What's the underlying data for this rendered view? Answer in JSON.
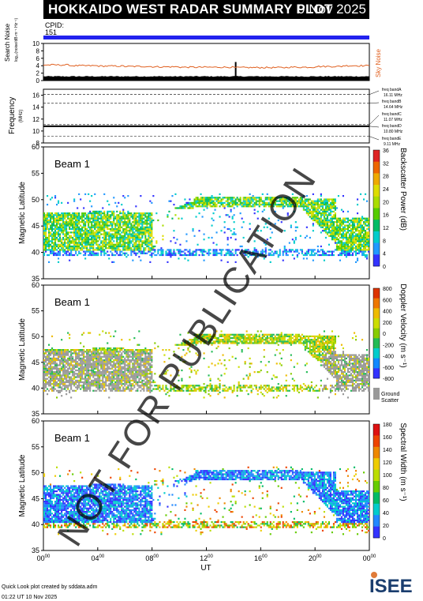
{
  "header": {
    "title": "HOKKAIDO WEST RADAR SUMMARY PLOT",
    "date": "9 Nov 2025"
  },
  "cpid": {
    "label": "CPID:",
    "value": "151"
  },
  "colors": {
    "cpid_bar": "#2222ee",
    "sky_noise": "#e06020",
    "search_noise": "#000000",
    "ground_scatter": "#999999",
    "watermark": "#000000"
  },
  "noise_panel": {
    "ylabel": "Search Noise",
    "ylabel_sub": "log₁₀(noise/dB·m⁻¹ Hz⁻¹)",
    "right_label": "Sky Noise",
    "yticks": [
      "10",
      "8",
      "6",
      "4",
      "2",
      "0"
    ],
    "ylim": [
      0,
      10
    ]
  },
  "freq_panel": {
    "ylabel": "Frequency",
    "ylabel_unit": "(MHz)",
    "yticks": [
      "16",
      "14",
      "12",
      "10",
      "8"
    ],
    "ylim": [
      8,
      17
    ],
    "bands": [
      {
        "label": "freq bandA",
        "value": "16.11 MHz",
        "mhz": 16.11
      },
      {
        "label": "freq bandB",
        "value": "14.64 MHz",
        "mhz": 14.64
      },
      {
        "label": "freq bandC",
        "value": "11.07 MHz",
        "mhz": 11.07
      },
      {
        "label": "freq bandD",
        "value": "10.80 MHz",
        "mhz": 10.8
      },
      {
        "label": "freq bandE",
        "value": "9.11 MHz",
        "mhz": 9.11
      }
    ]
  },
  "panels": [
    {
      "beam_label": "Beam  1",
      "ylabel": "Magnetic Latitude",
      "yticks": [
        "60",
        "55",
        "50",
        "45",
        "40",
        "35"
      ],
      "colorbar_label": "Backscatter Power (dB)",
      "colorbar_ticks": [
        "36",
        "32",
        "28",
        "24",
        "20",
        "16",
        "12",
        "8",
        "4",
        "0"
      ],
      "ground_scatter": null
    },
    {
      "beam_label": "Beam  1",
      "ylabel": "Magnetic Latitude",
      "yticks": [
        "60",
        "55",
        "50",
        "45",
        "40",
        "35"
      ],
      "colorbar_label": "Doppler Velocity (m s⁻¹)",
      "colorbar_ticks": [
        "800",
        "600",
        "400",
        "200",
        "0",
        "-200",
        "-400",
        "-600",
        "-800"
      ],
      "ground_scatter": {
        "line1": "Ground",
        "line2": "Scatter"
      }
    },
    {
      "beam_label": "Beam  1",
      "ylabel": "Magnetic Latitude",
      "yticks": [
        "60",
        "55",
        "50",
        "45",
        "40",
        "35"
      ],
      "colorbar_label": "Spectral Width (m s⁻¹)",
      "colorbar_ticks": [
        "180",
        "160",
        "140",
        "120",
        "100",
        "80",
        "60",
        "40",
        "20",
        "0"
      ],
      "ground_scatter": null
    }
  ],
  "xaxis": {
    "label": "UT",
    "ticks": [
      {
        "h": "00",
        "m": "00"
      },
      {
        "h": "04",
        "m": "00"
      },
      {
        "h": "08",
        "m": "00"
      },
      {
        "h": "12",
        "m": "00"
      },
      {
        "h": "16",
        "m": "00"
      },
      {
        "h": "20",
        "m": "00"
      },
      {
        "h": "00",
        "m": "00"
      }
    ]
  },
  "watermark": "NOT FOR PUBLICATION",
  "footer": {
    "line1": "Quick Look plot created by sddata.adm",
    "line2": "01:22 UT 10 Nov 2025"
  },
  "logo": {
    "text": "ISEE"
  },
  "chart_data": [
    {
      "type": "line",
      "title": "",
      "ylabel": "Search Noise",
      "xlim": [
        0,
        24
      ],
      "ylim": [
        0,
        10
      ],
      "series": [
        {
          "name": "Sky Noise",
          "x": [
            0,
            2,
            4,
            6,
            8,
            10,
            12,
            14,
            16,
            18,
            20,
            22,
            24
          ],
          "values": [
            4.2,
            4.0,
            3.9,
            3.8,
            3.7,
            3.6,
            3.6,
            3.5,
            3.5,
            3.6,
            3.8,
            4.0,
            4.1
          ]
        },
        {
          "name": "",
          "x": [
            0,
            2,
            4,
            6,
            8,
            10,
            12,
            14,
            16,
            18,
            20,
            22,
            24
          ],
          "values": [
            1.0,
            1.1,
            1.1,
            1.0,
            1.0,
            1.0,
            1.1,
            1.2,
            1.1,
            1.0,
            1.0,
            1.1,
            1.2
          ]
        }
      ]
    },
    {
      "type": "scatter",
      "ylabel": "Frequency",
      "xlim": [
        0,
        24
      ],
      "ylim": [
        8,
        17
      ],
      "series": [
        {
          "name": "freq bandD",
          "x": [
            0,
            24
          ],
          "values": [
            10.8,
            10.8
          ]
        }
      ]
    },
    {
      "type": "heatmap",
      "ylabel": "Magnetic Latitude",
      "xlabel": "UT",
      "xlim": [
        0,
        24
      ],
      "ylim": [
        35,
        60
      ],
      "colorbar": "Backscatter Power (dB)",
      "crange": [
        0,
        36
      ]
    },
    {
      "type": "heatmap",
      "ylabel": "Magnetic Latitude",
      "xlabel": "UT",
      "xlim": [
        0,
        24
      ],
      "ylim": [
        35,
        60
      ],
      "colorbar": "Doppler Velocity (m s⁻¹)",
      "crange": [
        -800,
        800
      ]
    },
    {
      "type": "heatmap",
      "ylabel": "Magnetic Latitude",
      "xlabel": "UT",
      "xlim": [
        0,
        24
      ],
      "ylim": [
        35,
        60
      ],
      "colorbar": "Spectral Width (m s⁻¹)",
      "crange": [
        0,
        180
      ]
    }
  ]
}
